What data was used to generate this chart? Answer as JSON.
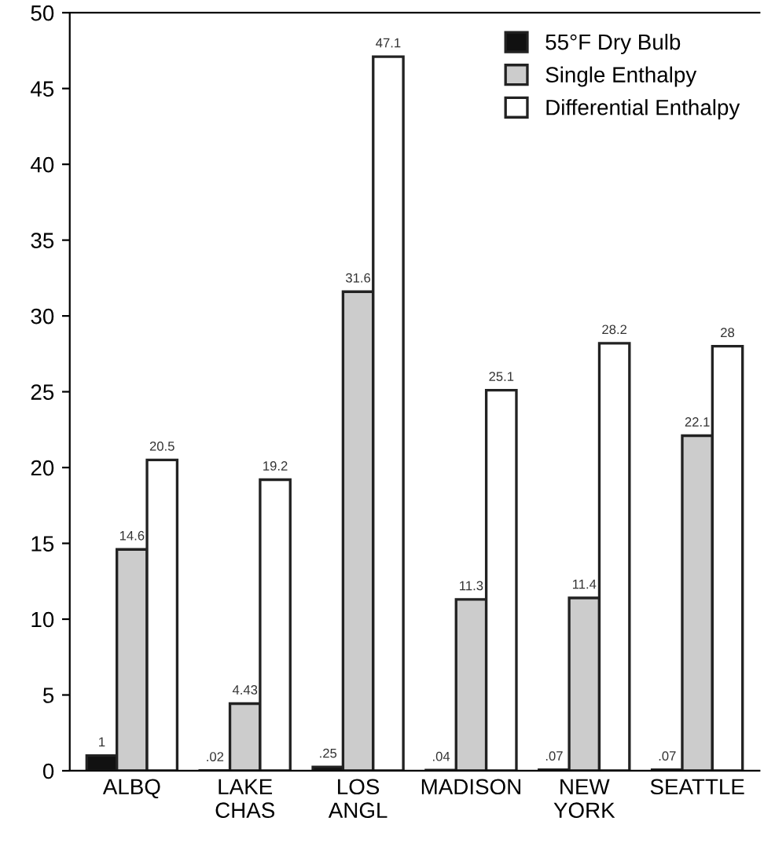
{
  "chart_data": {
    "type": "bar",
    "categories": [
      "ALBQ",
      "LAKE\nCHAS",
      "LOS\nANGL",
      "MADISON",
      "NEW\nYORK",
      "SEATTLE"
    ],
    "series": [
      {
        "name": "55°F Dry Bulb",
        "color": "#111111",
        "values": [
          1,
          0.02,
          0.25,
          0.04,
          0.07,
          0.07
        ],
        "value_labels": [
          "1",
          ".02",
          ".25",
          ".04",
          ".07",
          ".07"
        ]
      },
      {
        "name": "Single Enthalpy",
        "color": "#cccccc",
        "values": [
          14.6,
          4.43,
          31.6,
          11.3,
          11.4,
          22.1
        ],
        "value_labels": [
          "14.6",
          "4.43",
          "31.6",
          "11.3",
          "11.4",
          "22.1"
        ]
      },
      {
        "name": "Differential Enthalpy",
        "color": "#ffffff",
        "values": [
          20.5,
          19.2,
          47.1,
          25.1,
          28.2,
          28
        ],
        "value_labels": [
          "20.5",
          "19.2",
          "47.1",
          "25.1",
          "28.2",
          "28"
        ]
      }
    ],
    "ylim": [
      0,
      50
    ],
    "yticks": [
      0,
      5,
      10,
      15,
      20,
      25,
      30,
      35,
      40,
      45,
      50
    ],
    "grid": false,
    "legend": "top right"
  }
}
